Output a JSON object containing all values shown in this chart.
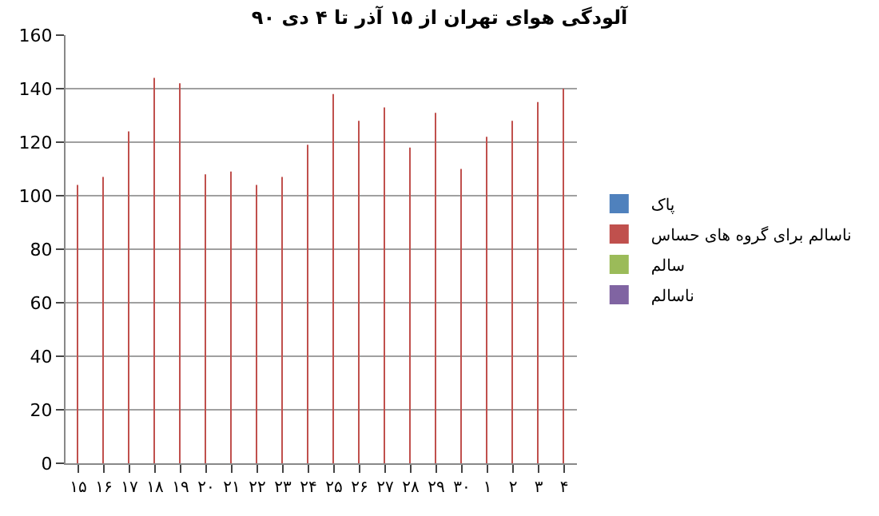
{
  "chart_data": {
    "type": "bar",
    "title": "آلودگی هوای تهران از ۱۵ آذر تا ۴ دی ۹۰",
    "categories": [
      "۱۵",
      "۱۶",
      "۱۷",
      "۱۸",
      "۱۹",
      "۲۰",
      "۲۱",
      "۲۲",
      "۲۳",
      "۲۴",
      "۲۵",
      "۲۶",
      "۲۷",
      "۲۸",
      "۲۹",
      "۳۰",
      "۱",
      "۲",
      "۳",
      "۴"
    ],
    "series": [
      {
        "name": "پاک",
        "color": "#4f81bd",
        "values": [
          null,
          null,
          null,
          null,
          null,
          null,
          null,
          null,
          null,
          null,
          null,
          null,
          null,
          null,
          null,
          null,
          null,
          null,
          null,
          null
        ]
      },
      {
        "name": "ناسالم برای گروه های حساس",
        "color": "#c0504d",
        "values": [
          104,
          107,
          124,
          144,
          142,
          108,
          109,
          104,
          107,
          119,
          138,
          128,
          133,
          118,
          131,
          110,
          122,
          128,
          135,
          140
        ]
      },
      {
        "name": "سالم",
        "color": "#9bbb59",
        "values": [
          null,
          null,
          null,
          null,
          null,
          null,
          null,
          null,
          null,
          null,
          null,
          null,
          null,
          null,
          null,
          null,
          null,
          null,
          null,
          null
        ]
      },
      {
        "name": "ناسالم",
        "color": "#8064a2",
        "values": [
          null,
          null,
          null,
          null,
          null,
          null,
          null,
          null,
          null,
          null,
          null,
          null,
          null,
          null,
          null,
          null,
          null,
          null,
          null,
          null
        ]
      }
    ],
    "ylim": [
      0,
      160
    ],
    "yticks": [
      0,
      20,
      40,
      60,
      80,
      100,
      120,
      140,
      160
    ],
    "grid": "y",
    "legend": "right"
  }
}
